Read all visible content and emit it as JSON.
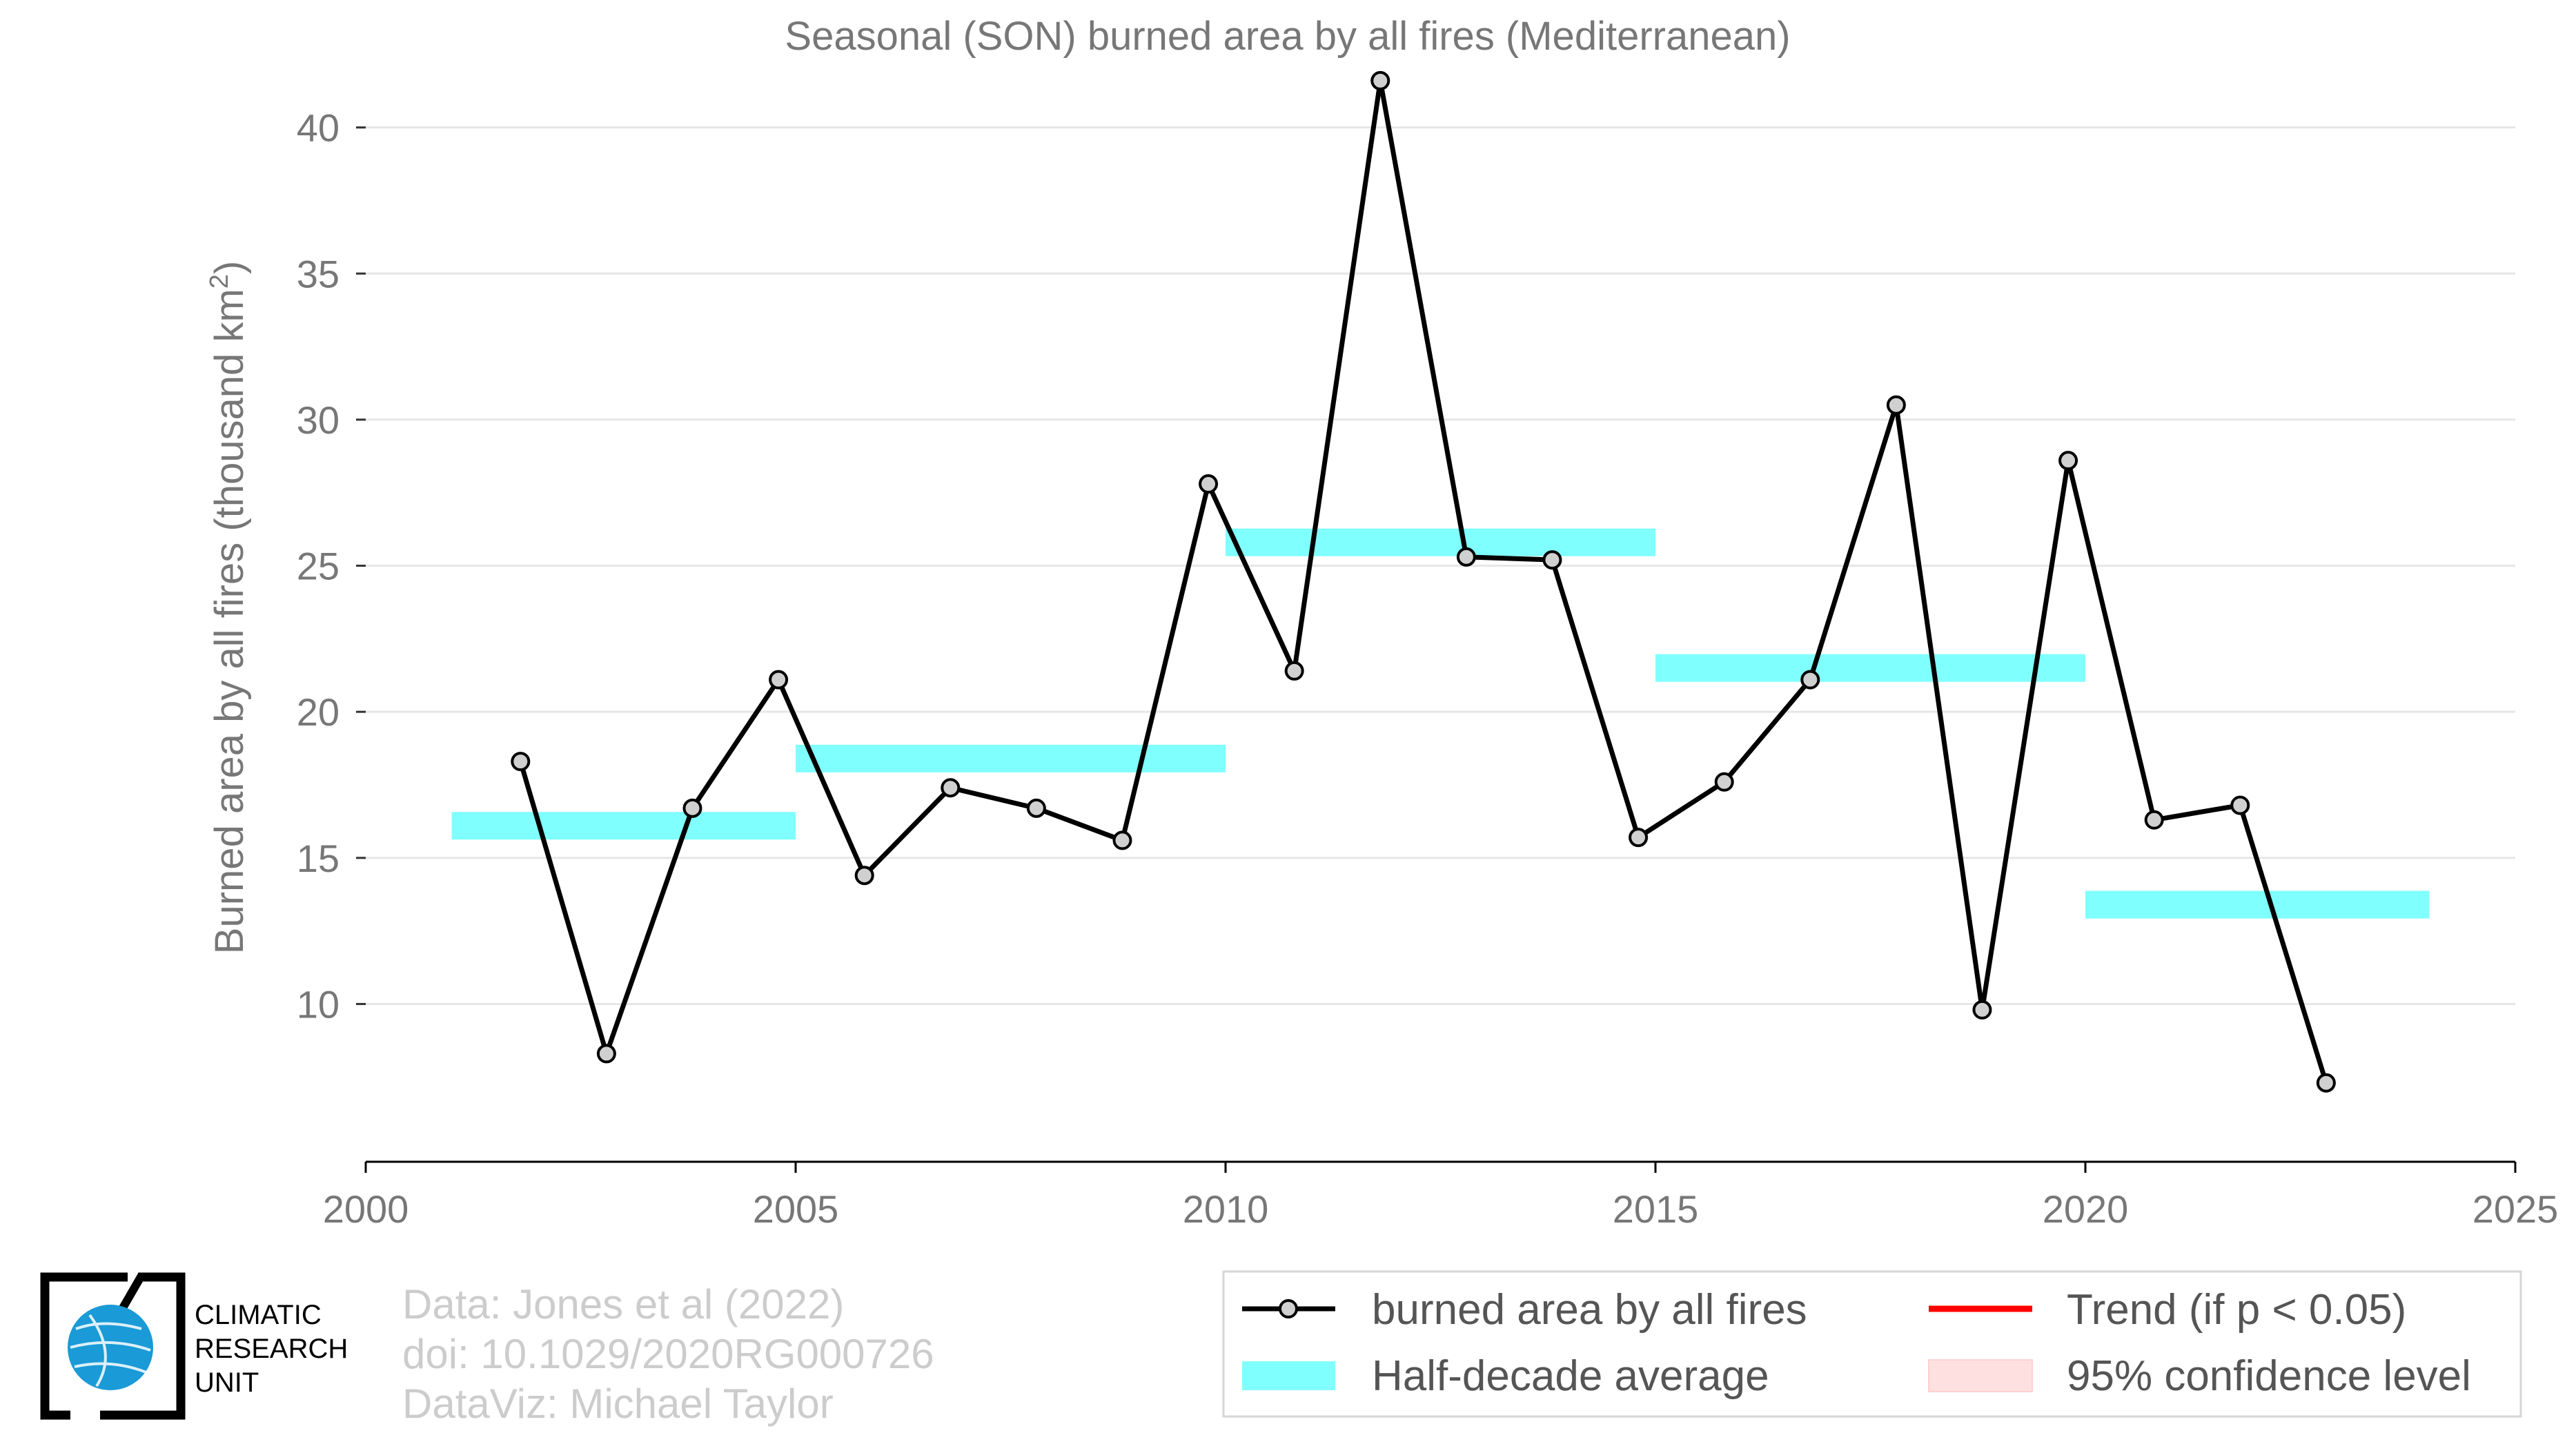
{
  "chart_data": {
    "type": "line",
    "title": "Seasonal (SON) burned area by all fires (Mediterranean)",
    "ylabel": "Burned area by all fires (thousand km²)",
    "ylabel_main": "Burned area by all fires (thousand km",
    "ylabel_sup": "2",
    "ylabel_close": ")",
    "xlim": [
      2000,
      2025
    ],
    "ylim": [
      4.6,
      42
    ],
    "x_ticks": [
      2000,
      2005,
      2010,
      2015,
      2020,
      2025
    ],
    "y_ticks": [
      10,
      15,
      20,
      25,
      30,
      35,
      40
    ],
    "grid": true,
    "series": [
      {
        "name": "burned area by all fires",
        "color": "#000000",
        "x": [
          2001.8,
          2002.8,
          2003.8,
          2004.8,
          2005.8,
          2006.8,
          2007.8,
          2008.8,
          2009.8,
          2010.8,
          2011.8,
          2012.8,
          2013.8,
          2014.8,
          2015.8,
          2016.8,
          2017.8,
          2018.8,
          2019.8,
          2020.8,
          2021.8,
          2022.8
        ],
        "y": [
          18.3,
          8.3,
          16.7,
          21.1,
          14.4,
          17.4,
          16.7,
          15.6,
          27.8,
          21.4,
          41.6,
          25.3,
          25.2,
          15.7,
          17.6,
          21.1,
          30.5,
          9.8,
          28.6,
          16.3,
          16.8,
          7.3
        ]
      }
    ],
    "half_decade_average": {
      "name": "Half-decade average",
      "color": "#80ffff",
      "segments": [
        {
          "x0": 2001,
          "x1": 2005,
          "y": 16.1
        },
        {
          "x0": 2005,
          "x1": 2010,
          "y": 18.4
        },
        {
          "x0": 2010,
          "x1": 2015,
          "y": 25.8
        },
        {
          "x0": 2015,
          "x1": 2020,
          "y": 21.5
        },
        {
          "x0": 2020,
          "x1": 2024,
          "y": 13.4
        }
      ]
    },
    "legend": {
      "placement": "bottom-right",
      "items": [
        {
          "label": "burned area by all fires",
          "kind": "line-marker",
          "color": "#000000"
        },
        {
          "label": "Trend (if p < 0.05)",
          "kind": "line",
          "color": "#ff0000"
        },
        {
          "label": "Half-decade average",
          "kind": "band",
          "color": "#80ffff"
        },
        {
          "label": "95% confidence level",
          "kind": "band",
          "color": "#ffe0e0"
        }
      ]
    }
  },
  "credits": {
    "line1": "Data: Jones et al (2022)",
    "line2": "doi: 10.1029/2020RG000726",
    "line3": "DataViz: Michael Taylor"
  },
  "logo": {
    "line1": "CLIMATIC",
    "line2": "RESEARCH",
    "line3": "UNIT",
    "color": "#1a9ad6"
  }
}
